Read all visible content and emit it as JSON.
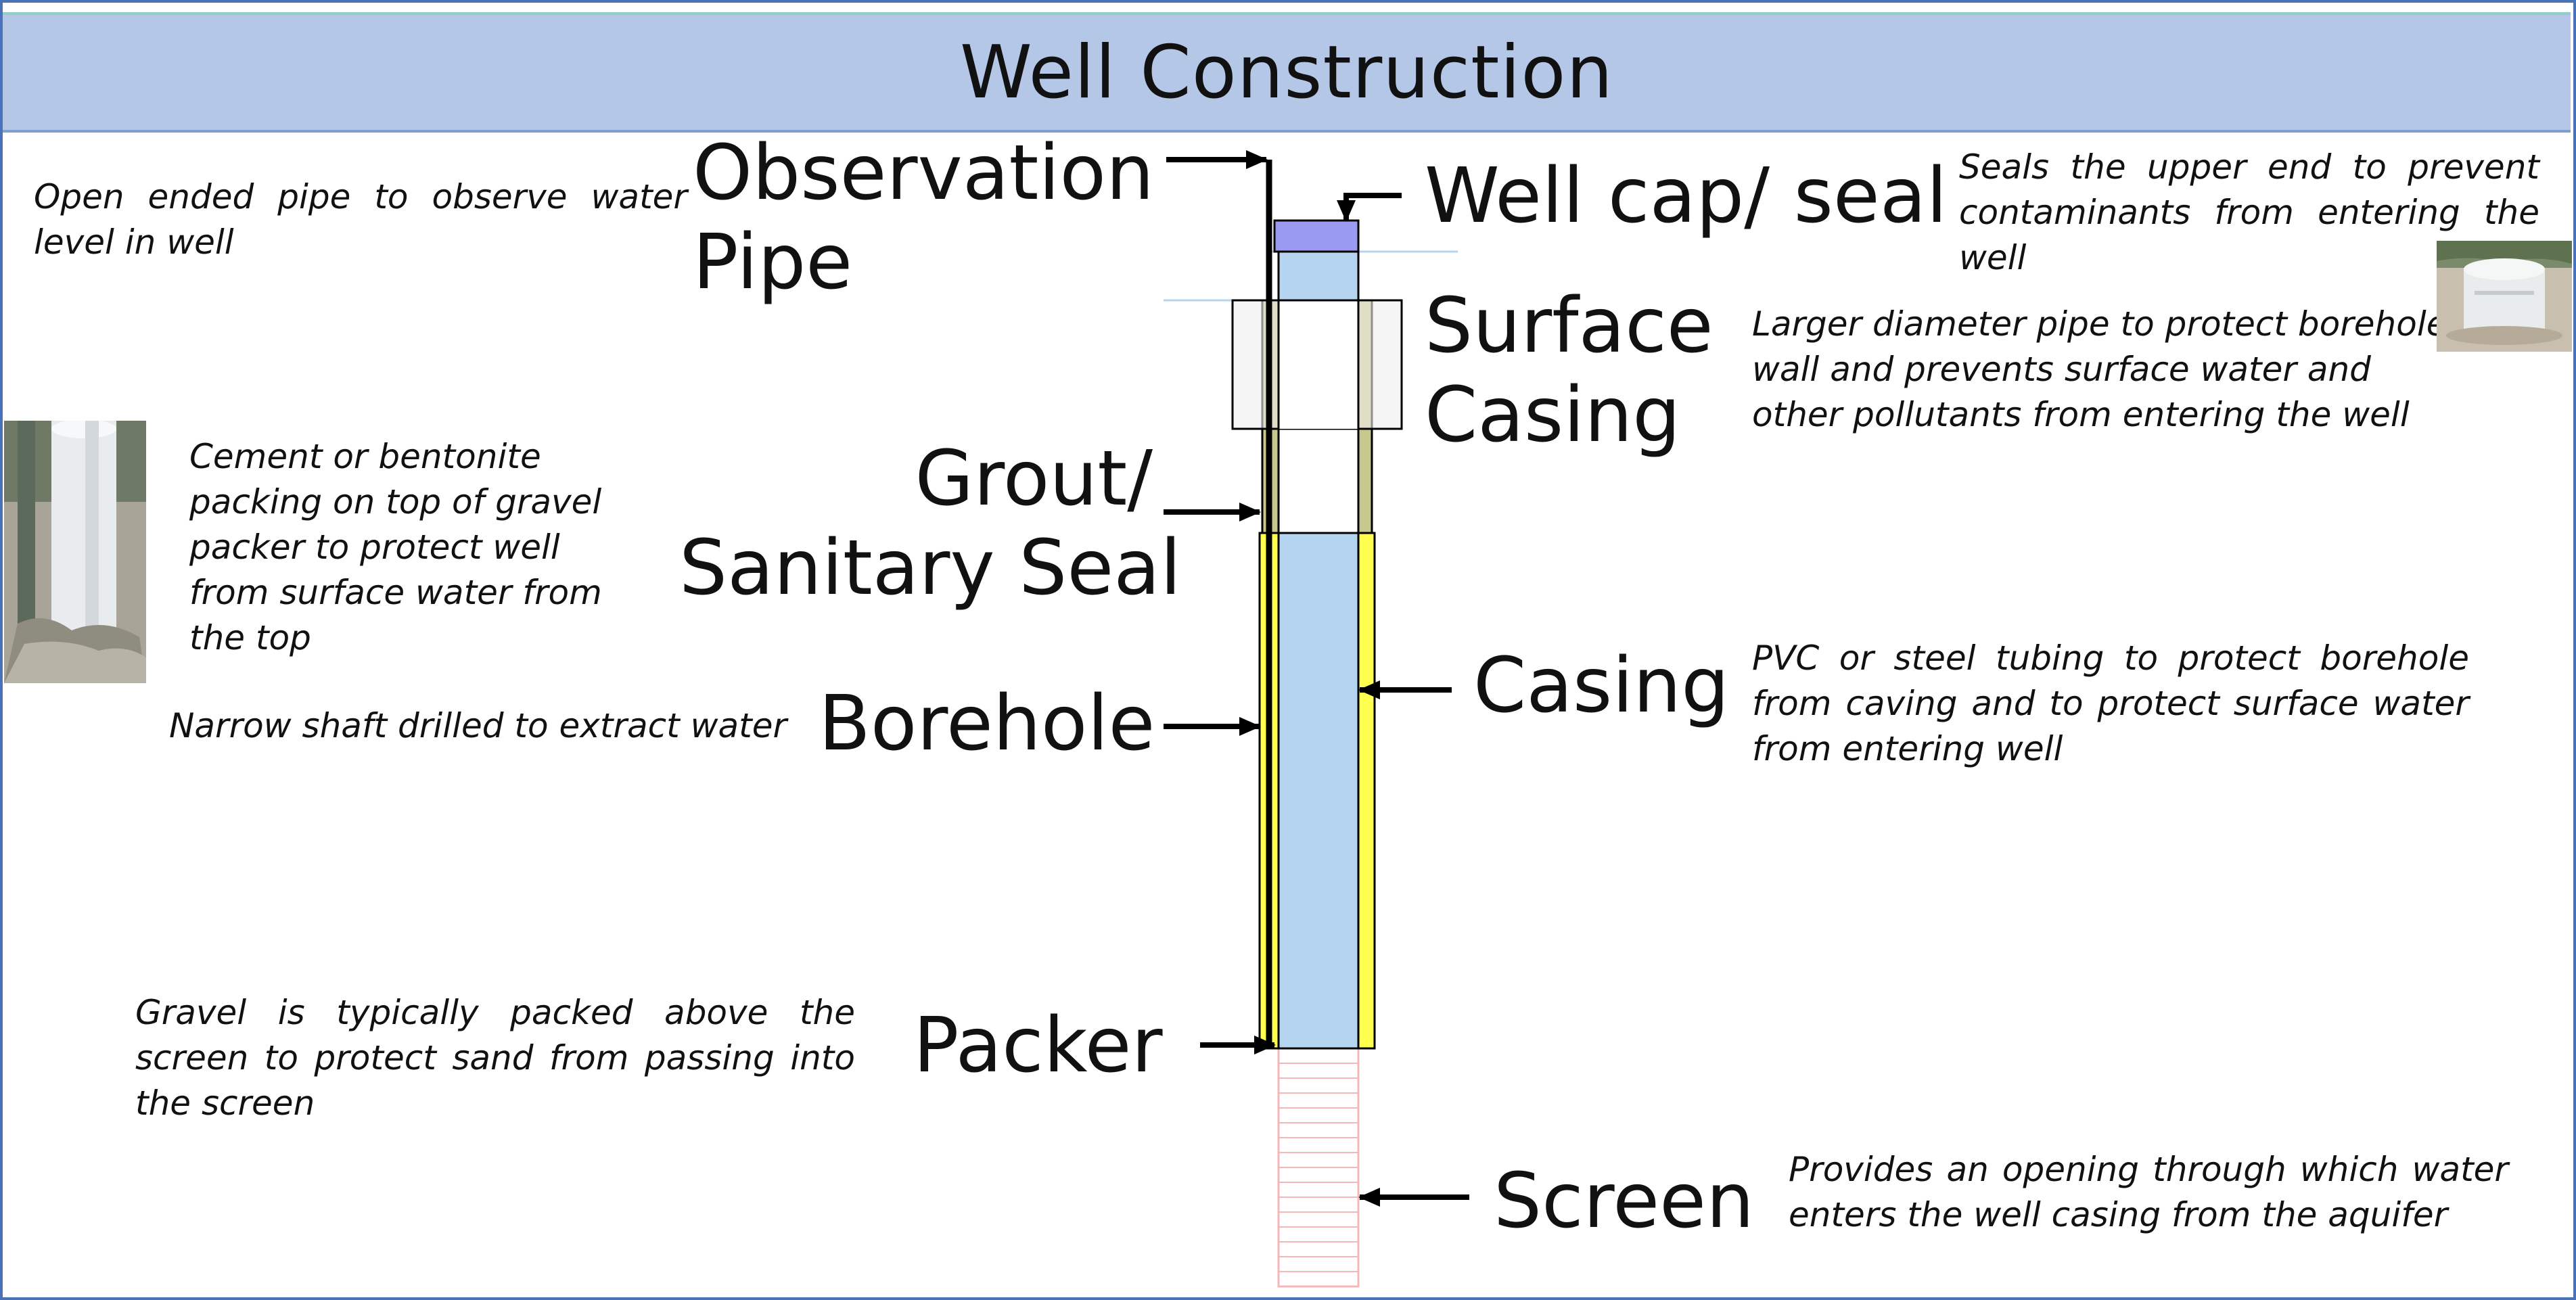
{
  "title": "Well Construction",
  "labels": {
    "observation_pipe": [
      "Observation",
      "Pipe"
    ],
    "well_cap": "Well cap/ seal",
    "surface_casing": [
      "Surface",
      "Casing"
    ],
    "grout": [
      "Grout/",
      "Sanitary Seal"
    ],
    "casing": "Casing",
    "borehole": "Borehole",
    "packer": "Packer",
    "screen": "Screen"
  },
  "descriptions": {
    "observation_pipe": "Open ended pipe to observe water level in well",
    "well_cap": "Seals the upper end to prevent contaminants from entering the well",
    "surface_casing": "Larger diameter pipe to protect borehole wall and prevents surface water and other pollutants from entering the well",
    "grout": [
      "Cement or bentonite packing on top of gravel packer to protect well",
      "from surface water from the top"
    ],
    "borehole": "Narrow shaft drilled to extract water",
    "casing": "PVC or steel tubing to protect borehole from caving and to protect surface water from entering well",
    "packer": "Gravel is typically packed above the screen to protect sand from passing into the screen",
    "screen": "Provides an opening through which water enters the well casing from the aquifer"
  },
  "colors": {
    "title_band": "#b4c7e7",
    "well_water": "#b4d4ef",
    "well_cap": "#9a9af0",
    "gravel_pack": "#ffff50",
    "grout": "#c8c88e",
    "surface_casing_sleeve": "#eeeeee",
    "screen_lines": "#f4b8b8",
    "frame_border": "#4a72b8"
  }
}
